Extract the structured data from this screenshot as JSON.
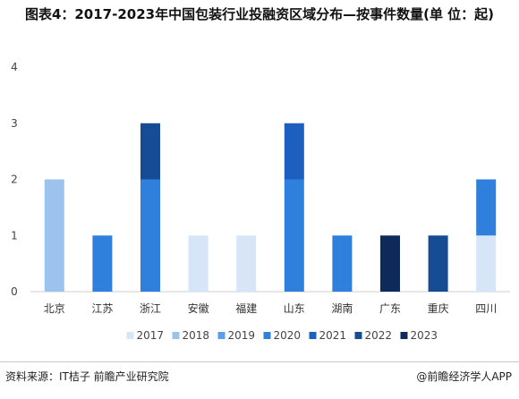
{
  "title": "图表4：2017-2023年中国包装行业投融资区域分布—按事件数量(单 位：起)",
  "source_note": "资料来源：IT桔子 前瞻产业研究院",
  "credit": "@前瞻经济学人APP",
  "colors": {
    "2017": "#d6e6f8",
    "2018": "#9cc3ee",
    "2019": "#5c9fe6",
    "2020": "#2f7fdc",
    "2021": "#1c5fbe",
    "2022": "#164c93",
    "2023": "#0e2a5a"
  },
  "chart_data": {
    "type": "bar",
    "stacked": true,
    "categories": [
      "北京",
      "江苏",
      "浙江",
      "安徽",
      "福建",
      "山东",
      "湖南",
      "广东",
      "重庆",
      "四川"
    ],
    "series": [
      {
        "name": "2017",
        "values": [
          0,
          0,
          0,
          1,
          1,
          0,
          0,
          0,
          0,
          1
        ]
      },
      {
        "name": "2018",
        "values": [
          2,
          0,
          0,
          0,
          0,
          0,
          0,
          0,
          0,
          0
        ]
      },
      {
        "name": "2019",
        "values": [
          0,
          0,
          0,
          0,
          0,
          0,
          0,
          0,
          0,
          0
        ]
      },
      {
        "name": "2020",
        "values": [
          0,
          1,
          2,
          0,
          0,
          2,
          1,
          0,
          0,
          1
        ]
      },
      {
        "name": "2021",
        "values": [
          0,
          0,
          0,
          0,
          0,
          1,
          0,
          0,
          0,
          0
        ]
      },
      {
        "name": "2022",
        "values": [
          0,
          0,
          1,
          0,
          0,
          0,
          0,
          0,
          1,
          0
        ]
      },
      {
        "name": "2023",
        "values": [
          0,
          0,
          0,
          0,
          0,
          0,
          0,
          1,
          0,
          0
        ]
      }
    ],
    "ylim": [
      0,
      4
    ],
    "yticks": [
      0,
      1,
      2,
      3,
      4
    ],
    "legend_position": "bottom"
  }
}
